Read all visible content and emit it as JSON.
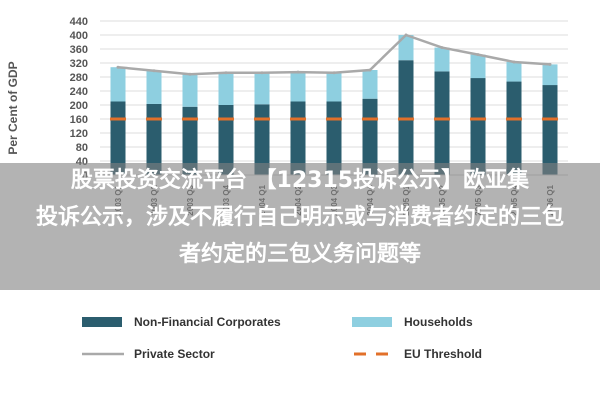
{
  "chart_data": {
    "type": "bar",
    "ylabel": "Per Cent of GDP",
    "ylim": [
      0,
      440
    ],
    "yticks": [
      0,
      40,
      80,
      120,
      160,
      200,
      240,
      280,
      320,
      360,
      400,
      440
    ],
    "categories": [
      "2003 Q1",
      "2003 Q2",
      "2003 Q3",
      "2003 Q4",
      "2004 Q1",
      "2004 Q2",
      "2004 Q3",
      "2004 Q4",
      "2005 Q1",
      "2005 Q2",
      "2005 Q3",
      "2005 Q4",
      "2006 Q1"
    ],
    "series": [
      {
        "name": "Non-Financial Corporates",
        "kind": "bar",
        "color": "#2b5d6e",
        "values": [
          210,
          203,
          195,
          200,
          202,
          210,
          210,
          218,
          328,
          296,
          277,
          267,
          257
        ]
      },
      {
        "name": "Households",
        "kind": "bar",
        "color": "#8ecfe0",
        "values": [
          98,
          95,
          93,
          92,
          90,
          84,
          82,
          82,
          72,
          68,
          67,
          56,
          59
        ]
      },
      {
        "name": "Private Sector",
        "kind": "line",
        "color": "#a9a9a9",
        "values": [
          308,
          298,
          288,
          292,
          292,
          294,
          292,
          300,
          400,
          364,
          344,
          323,
          316
        ]
      },
      {
        "name": "EU Threshold",
        "kind": "dashed",
        "color": "#e2702a",
        "values": [
          160,
          160,
          160,
          160,
          160,
          160,
          160,
          160,
          160,
          160,
          160,
          160,
          160
        ]
      }
    ],
    "legend": "bottom"
  },
  "overlay": {
    "line1": "股票投资交流平台 【12315投诉公示】欧亚集",
    "line2": "投诉公示，涉及不履行自己明示或与消费者约定的三包",
    "line3": "者约定的三包义务问题等"
  }
}
